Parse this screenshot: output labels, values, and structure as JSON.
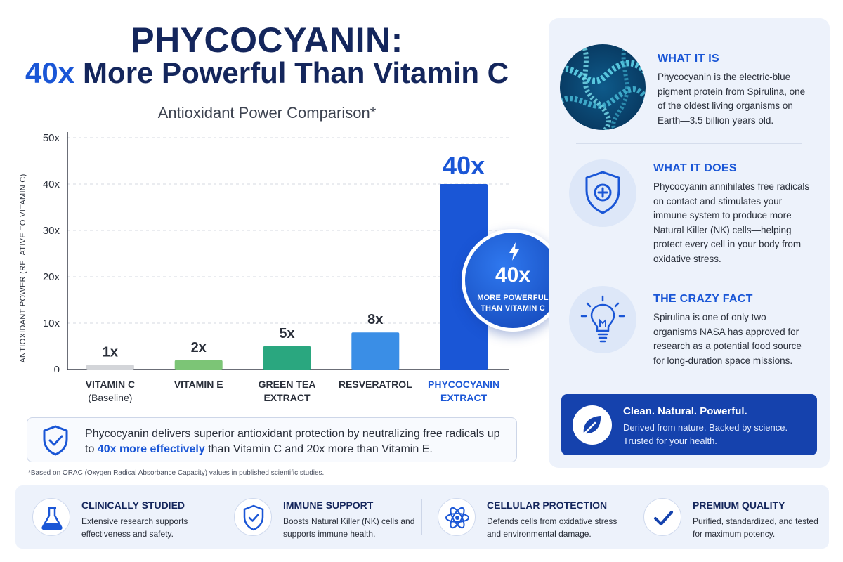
{
  "header": {
    "title_line1": "PHYCOCYANIN:",
    "title_accent": "40x",
    "title_line2": "More Powerful Than Vitamin C"
  },
  "chart_data": {
    "type": "bar",
    "title": "Antioxidant Power Comparison*",
    "ylabel": "ANTIOXIDANT POWER (RELATIVE TO VITAMIN C)",
    "xlabel": "",
    "ylim": [
      0,
      50
    ],
    "yticks": [
      "0",
      "10x",
      "20x",
      "30x",
      "40x",
      "50x"
    ],
    "categories": [
      {
        "main": "VITAMIN C",
        "sub": "(Baseline)"
      },
      {
        "main": "VITAMIN E",
        "sub": ""
      },
      {
        "main": "GREEN TEA",
        "sub": "EXTRACT"
      },
      {
        "main": "RESVERATROL",
        "sub": ""
      },
      {
        "main": "PHYCOCYANIN",
        "sub": "EXTRACT"
      }
    ],
    "values": [
      1,
      2,
      5,
      8,
      40
    ],
    "data_labels": [
      "1x",
      "2x",
      "5x",
      "8x",
      "40x"
    ],
    "colors": [
      "#d3d5d9",
      "#7cc576",
      "#2aa77f",
      "#3a8ee6",
      "#1a56d6"
    ],
    "grid": true
  },
  "badge": {
    "value": "40x",
    "text_line1": "MORE POWERFUL",
    "text_line2": "THAN VITAMIN C",
    "icon": "lightning-icon"
  },
  "summary": {
    "text_before": "Phycocyanin delivers superior antioxidant protection by neutralizing free radicals up to ",
    "text_em": "40x more effectively",
    "text_after": " than Vitamin C and 20x more than Vitamin E."
  },
  "footnote": "*Based on ORAC (Oxygen Radical Absorbance Capacity) values in published scientific studies.",
  "panel": {
    "what_it_is": {
      "title": "WHAT IT IS",
      "body": "Phycocyanin is the electric-blue pigment protein from Spirulina, one of the oldest living organisms on Earth—3.5 billion years old."
    },
    "what_it_does": {
      "title": "WHAT IT DOES",
      "body": "Phycocyanin annihilates free radicals on contact and stimulates your immune system to produce more Natural Killer (NK) cells—helping protect every cell in your body from oxidative stress."
    },
    "crazy_fact": {
      "title": "THE CRAZY FACT",
      "body": "Spirulina is one of only two organisms NASA has approved for research as a potential food source for long-duration space missions."
    },
    "cta": {
      "title": "Clean. Natural. Powerful.",
      "body": "Derived from nature. Backed by science. Trusted for your health."
    }
  },
  "features": [
    {
      "title": "CLINICALLY STUDIED",
      "body": "Extensive research supports effectiveness and safety.",
      "icon": "flask-icon"
    },
    {
      "title": "IMMUNE SUPPORT",
      "body": "Boosts Natural Killer (NK) cells and supports immune health.",
      "icon": "shield-check-icon"
    },
    {
      "title": "CELLULAR PROTECTION",
      "body": "Defends cells from oxidative stress and environmental damage.",
      "icon": "atom-icon"
    },
    {
      "title": "PREMIUM QUALITY",
      "body": "Purified, standardized, and tested for maximum potency.",
      "icon": "checkmark-icon"
    }
  ]
}
